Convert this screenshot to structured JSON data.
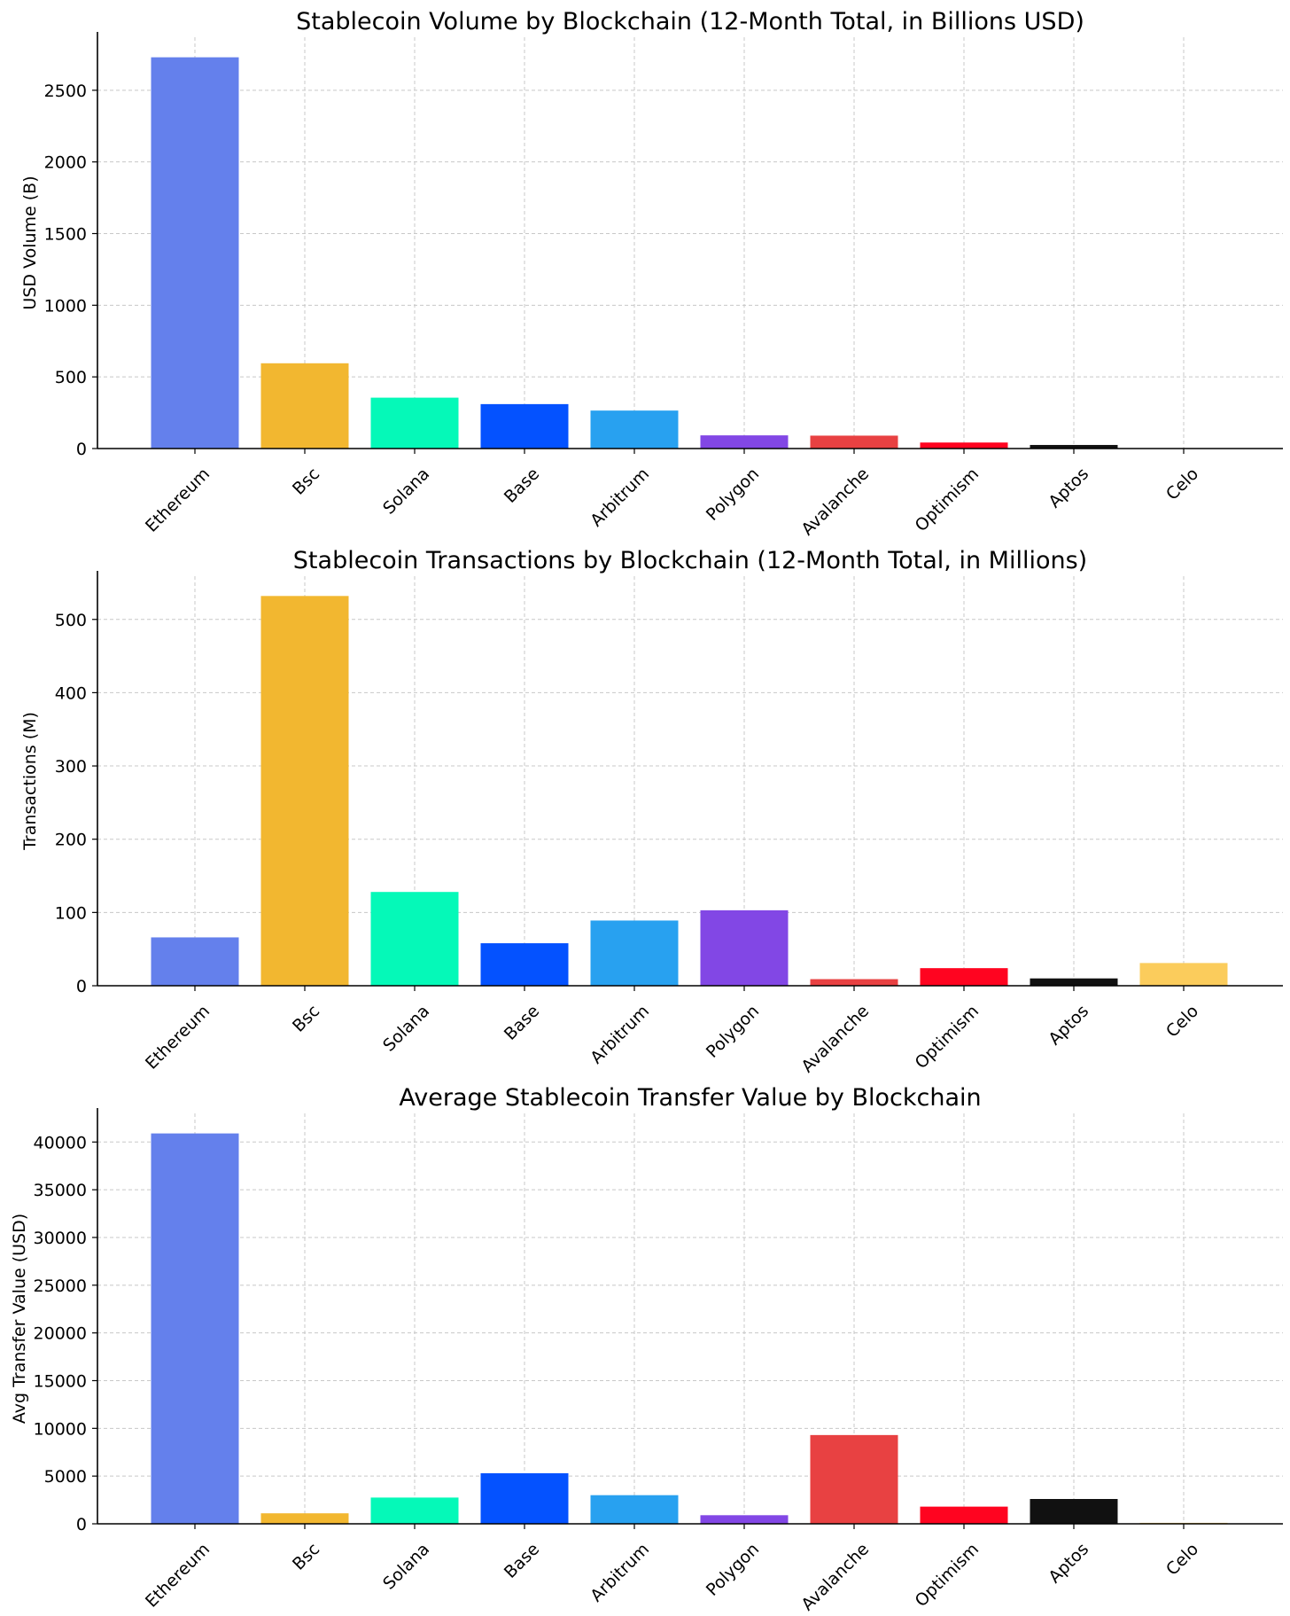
{
  "chart_data": [
    {
      "type": "bar",
      "title": "Stablecoin Volume by Blockchain (12-Month Total, in Billions USD)",
      "xlabel": "",
      "ylabel": "USD Volume (B)",
      "categories": [
        "Ethereum",
        "Bsc",
        "Solana",
        "Base",
        "Arbitrum",
        "Polygon",
        "Avalanche",
        "Optimism",
        "Aptos",
        "Celo"
      ],
      "values": [
        2730,
        595,
        355,
        310,
        265,
        92,
        90,
        42,
        25,
        3
      ],
      "colors": [
        "#6480ec",
        "#f2b730",
        "#05f9b8",
        "#0452ff",
        "#28a1f0",
        "#8247e5",
        "#e84142",
        "#ff0420",
        "#111111",
        "#fbcc5c"
      ],
      "ylim": [
        0,
        2870
      ],
      "yticks": [
        0,
        500,
        1000,
        1500,
        2000,
        2500
      ],
      "grid": true
    },
    {
      "type": "bar",
      "title": "Stablecoin Transactions by Blockchain (12-Month Total, in Millions)",
      "xlabel": "",
      "ylabel": "Transactions (M)",
      "categories": [
        "Ethereum",
        "Bsc",
        "Solana",
        "Base",
        "Arbitrum",
        "Polygon",
        "Avalanche",
        "Optimism",
        "Aptos",
        "Celo"
      ],
      "values": [
        66,
        532,
        128,
        58,
        89,
        103,
        9,
        24,
        10,
        31
      ],
      "colors": [
        "#6480ec",
        "#f2b730",
        "#05f9b8",
        "#0452ff",
        "#28a1f0",
        "#8247e5",
        "#e84142",
        "#ff0420",
        "#111111",
        "#fbcc5c"
      ],
      "ylim": [
        0,
        559
      ],
      "yticks": [
        0,
        100,
        200,
        300,
        400,
        500
      ],
      "grid": true
    },
    {
      "type": "bar",
      "title": "Average Stablecoin Transfer Value by Blockchain",
      "xlabel": "",
      "ylabel": "Avg Transfer Value (USD)",
      "categories": [
        "Ethereum",
        "Bsc",
        "Solana",
        "Base",
        "Arbitrum",
        "Polygon",
        "Avalanche",
        "Optimism",
        "Aptos",
        "Celo"
      ],
      "values": [
        40900,
        1100,
        2750,
        5300,
        3000,
        900,
        9300,
        1800,
        2600,
        100
      ],
      "colors": [
        "#6480ec",
        "#f2b730",
        "#05f9b8",
        "#0452ff",
        "#28a1f0",
        "#8247e5",
        "#e84142",
        "#ff0420",
        "#111111",
        "#fbcc5c"
      ],
      "ylim": [
        0,
        43000
      ],
      "yticks": [
        0,
        5000,
        10000,
        15000,
        20000,
        25000,
        30000,
        35000,
        40000
      ],
      "grid": true
    }
  ]
}
